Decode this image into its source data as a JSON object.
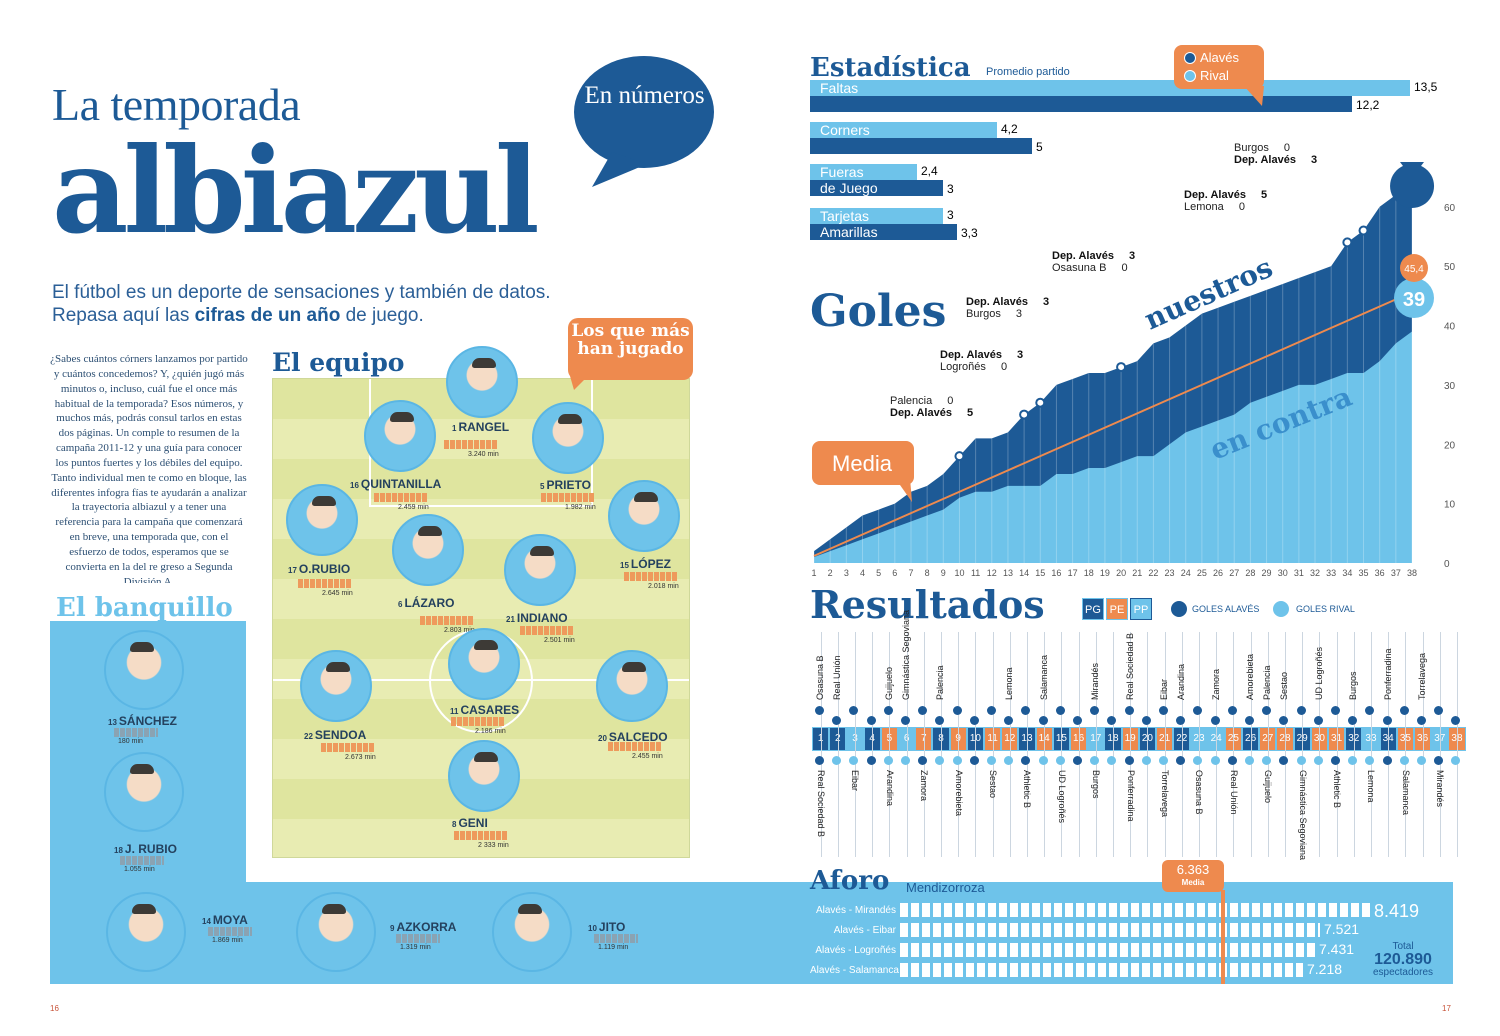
{
  "page_numbers": {
    "left": "16",
    "right": "17"
  },
  "header": {
    "title_line1": "La temporada",
    "title_line2": "albiazul",
    "bubble": "En números"
  },
  "intro": {
    "line1": "El fútbol es un deporte de sensaciones y también de datos.",
    "line2_pre": "Repasa aquí las ",
    "line2_bold": "cifras de un año",
    "line2_post": " de juego."
  },
  "body_text": "¿Sabes cuántos córners lanzamos por partido y cuántos concedemos? Y, ¿quién jugó más minutos o, incluso, cuál fue el once más habitual de la temporada? Esos números, y muchos más, podrás consul tarlos en estas dos páginas. Un comple to resumen de la campaña 2011-12 y una guía para conocer los puntos fuertes y los débiles del equipo. Tanto individual men te como en bloque, las diferentes infogra fías te ayudarán a analizar la trayectoria albiazul y a tener una referencia para la campaña que comenzará en breve, una temporada que, con el esfuerzo de todos, esperamos que se convierta en la del re greso a Segunda División A.",
  "equipo": {
    "heading": "El equipo",
    "bubble": "Los que más han jugado",
    "players": [
      {
        "num": "1",
        "name": "RANGEL",
        "min": "3.240 min"
      },
      {
        "num": "16",
        "name": "QUINTANILLA",
        "min": "2.459 min"
      },
      {
        "num": "5",
        "name": "PRIETO",
        "min": "1.982 min"
      },
      {
        "num": "17",
        "name": "O.RUBIO",
        "min": "2.645 min"
      },
      {
        "num": "6",
        "name": "LÁZARO",
        "min": "2.803 min"
      },
      {
        "num": "21",
        "name": "INDIANO",
        "min": "2.501 min"
      },
      {
        "num": "15",
        "name": "LÓPEZ",
        "min": "2.018 min"
      },
      {
        "num": "11",
        "name": "CASARES",
        "min": "2.186 min"
      },
      {
        "num": "22",
        "name": "SENDOA",
        "min": "2.673 min"
      },
      {
        "num": "20",
        "name": "SALCEDO",
        "min": "2.455 min"
      },
      {
        "num": "8",
        "name": "GENI",
        "min": "2 333 min"
      }
    ]
  },
  "banquillo": {
    "heading": "El banquillo",
    "players": [
      {
        "num": "13",
        "name": "SÁNCHEZ",
        "min": "180 min"
      },
      {
        "num": "18",
        "name": "J. RUBIO",
        "min": "1.055 min"
      },
      {
        "num": "14",
        "name": "MOYA",
        "min": "1.869 min"
      },
      {
        "num": "9",
        "name": "AZKORRA",
        "min": "1.319 min"
      },
      {
        "num": "10",
        "name": "JITO",
        "min": "1.119 min"
      }
    ]
  },
  "estadistica": {
    "heading": "Estadística",
    "subheading": "Promedio partido",
    "legend": {
      "alaves": "Alavés",
      "rival": "Rival"
    },
    "rows": [
      {
        "label": "Faltas",
        "rival": "13,5",
        "alaves": "12,2",
        "rival_value": 13.5,
        "alaves_value": 12.2
      },
      {
        "label": "Corners",
        "rival": "4,2",
        "alaves": "5",
        "rival_value": 4.2,
        "alaves_value": 5
      },
      {
        "label_top": "Fueras",
        "label_bottom": "de Juego",
        "rival": "2,4",
        "alaves": "3",
        "rival_value": 2.4,
        "alaves_value": 3
      },
      {
        "label_top": "Tarjetas",
        "label_bottom": "Amarillas",
        "rival": "3",
        "alaves": "3,3",
        "rival_value": 3,
        "alaves_value": 3.3
      }
    ],
    "colors": {
      "alaves": "#1d5a96",
      "rival": "#6ec3ea",
      "accent": "#ee8a4e"
    }
  },
  "goles": {
    "heading": "Goles",
    "label_nuestros": "nuestros",
    "label_contra": "en contra",
    "label_media": "Media",
    "final_nuestros": "64",
    "final_contra": "39",
    "final_media": "45,4",
    "annotations": [
      {
        "top": "Palencia",
        "top_score": "0",
        "bottom": "Dep. Alavés",
        "bottom_score": "5"
      },
      {
        "top": "Dep. Alavés",
        "top_score": "3",
        "bottom": "Logroñés",
        "bottom_score": "0"
      },
      {
        "top": "Dep. Alavés",
        "top_score": "3",
        "bottom": "Burgos",
        "bottom_score": "3"
      },
      {
        "top": "Dep. Alavés",
        "top_score": "3",
        "bottom": "Osasuna B",
        "bottom_score": "0"
      },
      {
        "top": "Dep. Alavés",
        "top_score": "5",
        "bottom": "Lemona",
        "bottom_score": "0"
      },
      {
        "top": "Burgos",
        "top_score": "0",
        "bottom": "Dep. Alavés",
        "bottom_score": "3"
      }
    ],
    "y_ticks": [
      "0",
      "10",
      "20",
      "30",
      "40",
      "50",
      "60"
    ],
    "x_ticks": [
      "1",
      "2",
      "3",
      "4",
      "5",
      "6",
      "7",
      "8",
      "9",
      "10",
      "11",
      "12",
      "13",
      "14",
      "15",
      "16",
      "17",
      "18",
      "19",
      "20",
      "21",
      "22",
      "23",
      "24",
      "25",
      "26",
      "27",
      "28",
      "29",
      "30",
      "31",
      "32",
      "33",
      "34",
      "35",
      "36",
      "37",
      "38"
    ]
  },
  "chart_data": {
    "type": "area",
    "title": "Goles",
    "x": [
      1,
      2,
      3,
      4,
      5,
      6,
      7,
      8,
      9,
      10,
      11,
      12,
      13,
      14,
      15,
      16,
      17,
      18,
      19,
      20,
      21,
      22,
      23,
      24,
      25,
      26,
      27,
      28,
      29,
      30,
      31,
      32,
      33,
      34,
      35,
      36,
      37,
      38
    ],
    "series": [
      {
        "name": "nuestros",
        "values": [
          2,
          4,
          6,
          8,
          9,
          10,
          12,
          13,
          15,
          18,
          21,
          21,
          22,
          25,
          27,
          30,
          31,
          32,
          32,
          33,
          34,
          37,
          38,
          40,
          42,
          43,
          44,
          45,
          46,
          47,
          48,
          49,
          50,
          54,
          56,
          60,
          62,
          64
        ]
      },
      {
        "name": "en contra",
        "values": [
          1,
          2,
          3,
          4,
          5,
          6,
          7,
          8,
          9,
          11,
          12,
          12,
          13,
          13,
          13,
          15,
          15,
          16,
          16,
          17,
          18,
          18,
          20,
          22,
          23,
          24,
          25,
          27,
          28,
          29,
          30,
          30,
          31,
          32,
          32,
          34,
          37,
          39
        ]
      },
      {
        "name": "Media",
        "values": [
          1.2,
          2.4,
          3.6,
          4.8,
          6,
          7.2,
          8.4,
          9.6,
          10.8,
          12,
          13.2,
          14.4,
          15.6,
          16.8,
          18,
          19.2,
          20.4,
          21.6,
          22.8,
          24,
          25.2,
          26.4,
          27.6,
          28.8,
          30,
          31.2,
          32.4,
          33.6,
          34.8,
          36,
          37.2,
          38.4,
          39.6,
          40.8,
          42,
          43.2,
          44.4,
          45.4
        ]
      }
    ],
    "ylim": [
      0,
      64
    ]
  },
  "resultados": {
    "heading": "Resultados",
    "legend": {
      "pg": "PG",
      "pe": "PE",
      "pp": "PP",
      "goles_alaves": "GOLES ALAVÉS",
      "goles_rival": "GOLES RIVAL"
    },
    "top_teams": [
      "Osasuna B",
      "Real Unión",
      "",
      "",
      "Guijuelo",
      "Gimnástica Segoviana",
      "",
      "Palencia",
      "",
      "",
      "",
      "Lemona",
      "",
      "Salamanca",
      "",
      "",
      "Mirandés",
      "",
      "Real Sociedad B",
      "",
      "Eibar",
      "Arandina",
      "",
      "Zamora",
      "",
      "Amorebieta",
      "Palencia",
      "Sestao",
      "",
      "UD Logroñés",
      "",
      "Burgos",
      "",
      "Ponferradina",
      "",
      "Torrelavega"
    ],
    "bottom_teams": [
      "Real Sociedad B",
      "Eibar",
      "Arandina",
      "Zamora",
      "Amorebieta",
      "Sestao",
      "Athletic B",
      "UD Logroñés",
      "Burgos",
      "Ponferradina",
      "Torrelavega",
      "Osasuna B",
      "Real Unión",
      "Guijuelo",
      "Gimnástica Segoviana",
      "Athletic B",
      "Lemona",
      "Salamanca",
      "Mirandés"
    ],
    "results": [
      "PG",
      "PG",
      "PP",
      "PG",
      "PE",
      "PP",
      "PE",
      "PG",
      "PE",
      "PG",
      "PE",
      "PE",
      "PG",
      "PE",
      "PG",
      "PE",
      "PP",
      "PG",
      "PE",
      "PG",
      "PE",
      "PG",
      "PP",
      "PP",
      "PE",
      "PG",
      "PE",
      "PE",
      "PG",
      "PE",
      "PE",
      "PG",
      "PP",
      "PG",
      "PE",
      "PE",
      "PP",
      "PE"
    ]
  },
  "aforo": {
    "heading": "Aforo",
    "subheading": "Mendizorroza",
    "media_value": "6.363",
    "media_label": "Media",
    "rows": [
      {
        "label": "Alavés - Mirandés",
        "value": "8.419",
        "n": 8419
      },
      {
        "label": "Alavés - Eibar",
        "value": "7.521",
        "n": 7521
      },
      {
        "label": "Alavés - Logroñés",
        "value": "7.431",
        "n": 7431
      },
      {
        "label": "Alavés - Salamanca",
        "value": "7.218",
        "n": 7218
      }
    ],
    "total_label": "Total",
    "total_value": "120.890",
    "total_unit": "espectadores"
  }
}
